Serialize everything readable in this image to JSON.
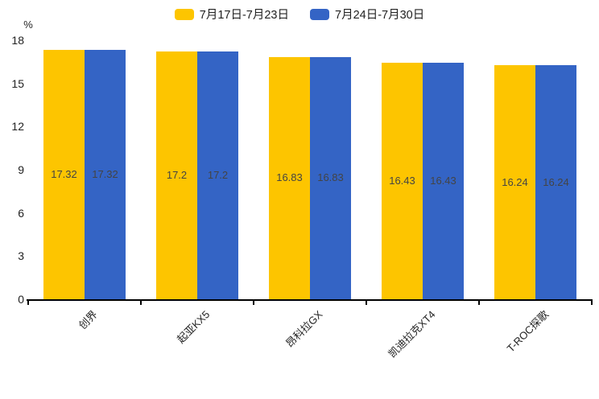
{
  "legend": {
    "items": [
      {
        "series_index": 0
      },
      {
        "series_index": 1
      }
    ]
  },
  "chart_data": {
    "type": "bar",
    "title": "",
    "xlabel": "",
    "ylabel": "%",
    "categories": [
      "创界",
      "起亚KX5",
      "昂科拉GX",
      "凯迪拉克XT4",
      "T-ROC探歌"
    ],
    "series": [
      {
        "name": "7月17日-7月23日",
        "color": "#FDC500",
        "values": [
          17.32,
          17.2,
          16.83,
          16.43,
          16.24
        ]
      },
      {
        "name": "7月24日-7月30日",
        "color": "#3464C5",
        "values": [
          17.32,
          17.2,
          16.83,
          16.43,
          16.24
        ]
      }
    ],
    "value_labels": [
      [
        "17.32",
        "17.32"
      ],
      [
        "17.2",
        "17.2"
      ],
      [
        "16.83",
        "16.83"
      ],
      [
        "16.43",
        "16.43"
      ],
      [
        "16.24",
        "16.24"
      ]
    ],
    "ylim": [
      0,
      18
    ],
    "yticks": [
      "0",
      "3",
      "6",
      "9",
      "12",
      "15",
      "18"
    ],
    "grid": false,
    "legend_position": "top-center",
    "value_label_position": "inside-center",
    "x_label_rotation_deg": 45,
    "axis_color": "#000000",
    "text_color": "#222222",
    "value_label_color": "#444444",
    "background_color": "#ffffff"
  }
}
